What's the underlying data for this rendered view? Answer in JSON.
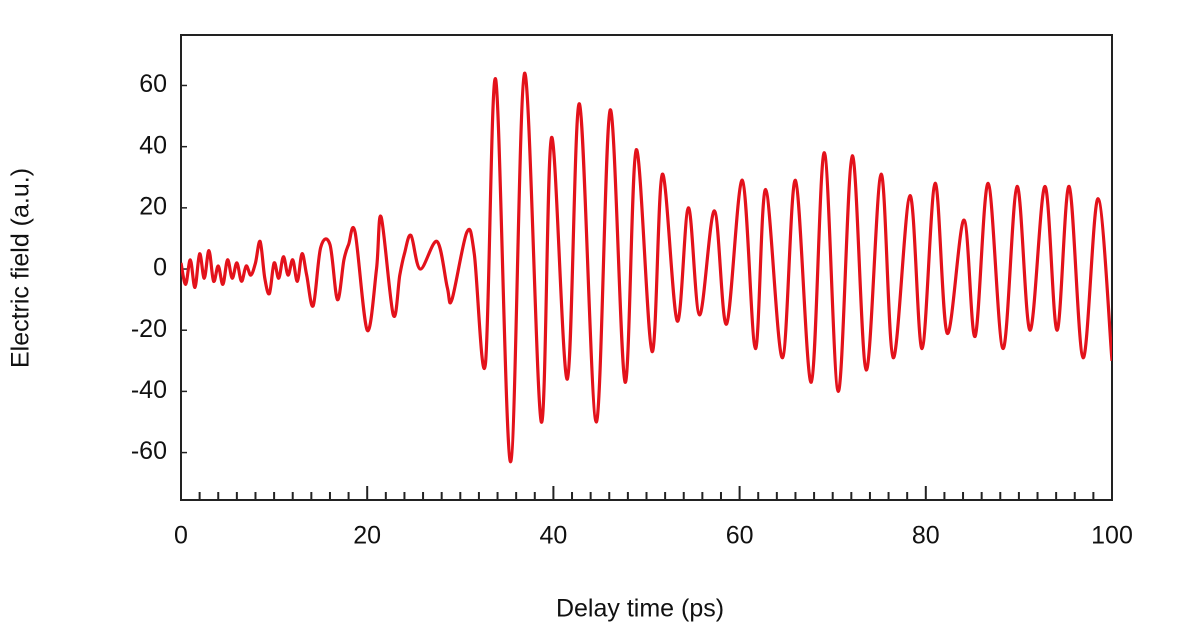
{
  "chart_data": {
    "type": "line",
    "x_label": "Delay time (ps)",
    "y_label": "Electric field (a.u.)",
    "xlim": [
      0,
      100
    ],
    "ylim": [
      -75.5,
      76.5
    ],
    "xticks": [
      0,
      20,
      40,
      60,
      80,
      100
    ],
    "xminorticks": [
      2,
      4,
      6,
      8,
      10,
      12,
      14,
      16,
      18,
      22,
      24,
      26,
      28,
      30,
      32,
      34,
      36,
      38,
      42,
      44,
      46,
      48,
      50,
      52,
      54,
      56,
      58,
      62,
      64,
      66,
      68,
      70,
      72,
      74,
      76,
      78,
      82,
      84,
      86,
      88,
      90,
      92,
      94,
      96,
      98
    ],
    "yticks": [
      -60,
      -40,
      -20,
      0,
      20,
      40,
      60
    ],
    "grid": false,
    "series": [
      {
        "color": "#e3121b",
        "x": [
          0,
          0.5,
          1,
          1.5,
          2,
          2.5,
          3,
          3.5,
          4,
          4.5,
          5,
          5.5,
          6,
          6.5,
          7,
          7.5,
          8,
          8.5,
          9,
          9.5,
          10,
          10.5,
          11,
          11.5,
          12,
          12.5,
          13,
          13.5,
          14.2,
          15,
          16,
          16.8,
          17.5,
          18,
          18.7,
          20,
          21,
          21.5,
          22.8,
          23.5,
          24,
          24.7,
          25.7,
          27.5,
          28.6,
          29.1,
          30.7,
          31.5,
          32.7,
          33.8,
          35.4,
          36.9,
          38.7,
          39.8,
          41.5,
          42.8,
          44.6,
          46.1,
          47.7,
          48.9,
          50.6,
          51.7,
          53.3,
          54.5,
          55.7,
          57.3,
          58.6,
          60.3,
          61.7,
          62.8,
          64.6,
          66,
          67.7,
          69.1,
          70.6,
          72.1,
          73.6,
          75.2,
          76.5,
          78.3,
          79.6,
          81,
          82.3,
          84.1,
          85.3,
          86.7,
          88.3,
          89.8,
          91.2,
          92.8,
          94.1,
          95.4,
          96.9,
          98.5,
          100
        ],
        "values": [
          2,
          -5,
          3,
          -6,
          5,
          -3,
          6,
          -4,
          1,
          -5,
          3,
          -3,
          2,
          -4,
          1,
          -2,
          2,
          9,
          -3,
          -8,
          2,
          -3,
          4,
          -2,
          3,
          -4,
          5,
          -2,
          -12,
          7,
          8,
          -10,
          3,
          8,
          12,
          -20,
          0,
          17,
          -15,
          -2,
          5,
          11,
          0,
          9,
          -6,
          -10,
          12,
          5,
          -31,
          62,
          -63,
          64,
          -50,
          43,
          -36,
          54,
          -50,
          52,
          -37,
          39,
          -27,
          31,
          -17,
          20,
          -15,
          19,
          -18,
          29,
          -26,
          26,
          -29,
          29,
          -37,
          38,
          -40,
          37,
          -33,
          31,
          -29,
          24,
          -26,
          28,
          -21,
          16,
          -22,
          28,
          -26,
          27,
          -20,
          27,
          -20,
          27,
          -29,
          23,
          -30
        ]
      }
    ]
  }
}
